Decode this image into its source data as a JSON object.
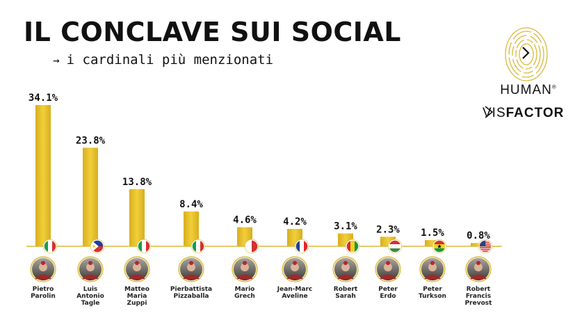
{
  "header": {
    "title": "IL CONCLAVE SUI SOCIAL",
    "subtitle": "i cardinali più menzionati",
    "arrow": "→"
  },
  "brand": {
    "line1": "HUMAN",
    "reg": "®",
    "vis": "VIS",
    "factor": "FACTOR",
    "color": "#d9b93b"
  },
  "colors": {
    "bar": "#eecb37",
    "bar_dark": "#d6ad1c",
    "baseline": "#d9b93b"
  },
  "chart_data": {
    "type": "bar",
    "title": "IL CONCLAVE SUI SOCIAL",
    "subtitle": "i cardinali più menzionati",
    "unit": "%",
    "categories": [
      "Pietro Parolin",
      "Luis Antonio Tagle",
      "Matteo Maria Zuppi",
      "Pierbattista Pizzaballa",
      "Mario Grech",
      "Jean-Marc Aveline",
      "Robert Sarah",
      "Peter Erdo",
      "Peter Turkson",
      "Robert Francis Prevost"
    ],
    "values": [
      34.1,
      23.8,
      13.8,
      8.4,
      4.6,
      4.2,
      3.1,
      2.3,
      1.5,
      0.8
    ],
    "data_labels": [
      "34.1%",
      "23.8%",
      "13.8%",
      "8.4%",
      "4.6%",
      "4.2%",
      "3.1%",
      "2.3%",
      "1.5%",
      "0.8%"
    ],
    "name_lines": [
      [
        "Pietro",
        "Parolin"
      ],
      [
        "Luis",
        "Antonio",
        "Tagle"
      ],
      [
        "Matteo",
        "Maria",
        "Zuppi"
      ],
      [
        "Pierbattista",
        "Pizzaballa"
      ],
      [
        "Mario",
        "Grech"
      ],
      [
        "Jean-Marc",
        "Aveline"
      ],
      [
        "Robert",
        "Sarah"
      ],
      [
        "Peter",
        "Erdo"
      ],
      [
        "Peter",
        "Turkson"
      ],
      [
        "Robert",
        "Francis",
        "Prevost"
      ]
    ],
    "flags": [
      "italy-flag",
      "philippines-flag",
      "italy-flag",
      "italy-flag",
      "malta-flag",
      "france-flag",
      "guinea-flag",
      "hungary-flag",
      "ghana-flag",
      "usa-flag"
    ],
    "ylim": [
      0,
      34.1
    ],
    "grid": false,
    "legend": "none",
    "xlabel": "",
    "ylabel": ""
  }
}
